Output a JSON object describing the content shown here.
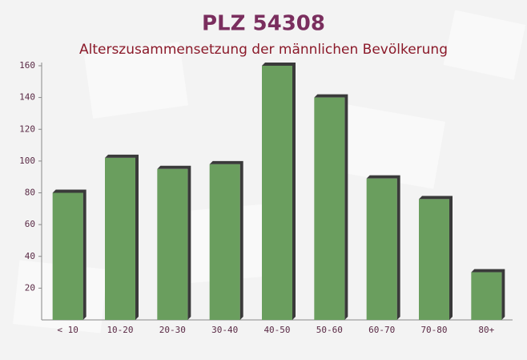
{
  "chart_data": {
    "type": "bar",
    "title": "PLZ 54308",
    "subtitle": "Alterszusammensetzung der männlichen Bevölkerung",
    "categories": [
      "< 10",
      "10-20",
      "20-30",
      "30-40",
      "40-50",
      "50-60",
      "60-70",
      "70-80",
      "80+"
    ],
    "values": [
      80,
      102,
      95,
      98,
      160,
      140,
      89,
      76,
      30
    ],
    "color": "#6a9e5e",
    "ylim": [
      0,
      160
    ],
    "yticks": [
      20,
      40,
      60,
      80,
      100,
      120,
      140,
      160
    ],
    "grid": false
  }
}
